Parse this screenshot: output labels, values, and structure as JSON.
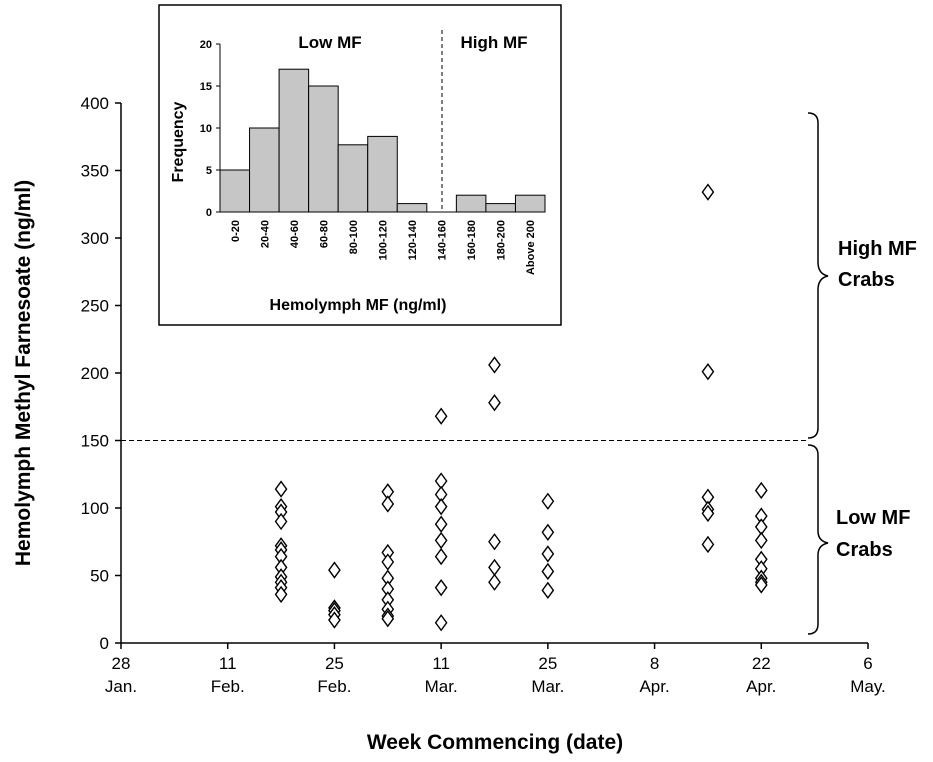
{
  "chart_data": [
    {
      "type": "scatter",
      "xlabel": "Week Commencing (date)",
      "ylabel": "Hemolymph Methyl Farnesoate (ng/ml)",
      "ylim": [
        0,
        400
      ],
      "yticks": [
        "0",
        "50",
        "100",
        "150",
        "200",
        "250",
        "300",
        "350",
        "400"
      ],
      "xlim": [
        "2001-01-28",
        "2001-05-06"
      ],
      "xticks": [
        {
          "day": "28",
          "month": "Jan."
        },
        {
          "day": "11",
          "month": "Feb."
        },
        {
          "day": "25",
          "month": "Feb."
        },
        {
          "day": "11",
          "month": "Mar."
        },
        {
          "day": "25",
          "month": "Mar."
        },
        {
          "day": "8",
          "month": "Apr."
        },
        {
          "day": "22",
          "month": "Apr."
        },
        {
          "day": "6",
          "month": "May."
        }
      ],
      "threshold": 150,
      "marker": "diamond",
      "groups": [
        {
          "x": "2001-02-18",
          "y": [
            114,
            101,
            97,
            90,
            72,
            69,
            64,
            56,
            49,
            45,
            41,
            36
          ]
        },
        {
          "x": "2001-02-25",
          "y": [
            54,
            26,
            24,
            21,
            17
          ]
        },
        {
          "x": "2001-03-04",
          "y": [
            112,
            103,
            67,
            60,
            48,
            40,
            32,
            25,
            20,
            18
          ]
        },
        {
          "x": "2001-03-11",
          "y": [
            168,
            120,
            110,
            101,
            88,
            76,
            64,
            41,
            15
          ]
        },
        {
          "x": "2001-03-18",
          "y": [
            206,
            178,
            75,
            56,
            45
          ]
        },
        {
          "x": "2001-03-25",
          "y": [
            105,
            82,
            66,
            53,
            39
          ]
        },
        {
          "x": "2001-04-15",
          "y": [
            334,
            201,
            108,
            99,
            96,
            73
          ]
        },
        {
          "x": "2001-04-22",
          "y": [
            113,
            94,
            86,
            76,
            62,
            55,
            48,
            45,
            43
          ]
        }
      ],
      "annotations": {
        "high": [
          "High MF",
          "Crabs"
        ],
        "low": [
          "Low MF",
          "Crabs"
        ]
      }
    },
    {
      "type": "bar",
      "title": "inset",
      "xlabel": "Hemolymph MF (ng/ml)",
      "ylabel": "Frequency",
      "ylim": [
        0,
        20
      ],
      "yticks": [
        "0",
        "5",
        "10",
        "15",
        "20"
      ],
      "categories": [
        "0-20",
        "20-40",
        "40-60",
        "60-80",
        "80-100",
        "100-120",
        "120-140",
        "140-160",
        "160-180",
        "180-200",
        "Above 200"
      ],
      "values": [
        5,
        10,
        17,
        15,
        8,
        9,
        1,
        0,
        2,
        1,
        2
      ],
      "regions": [
        "Low MF",
        "High MF"
      ]
    }
  ]
}
